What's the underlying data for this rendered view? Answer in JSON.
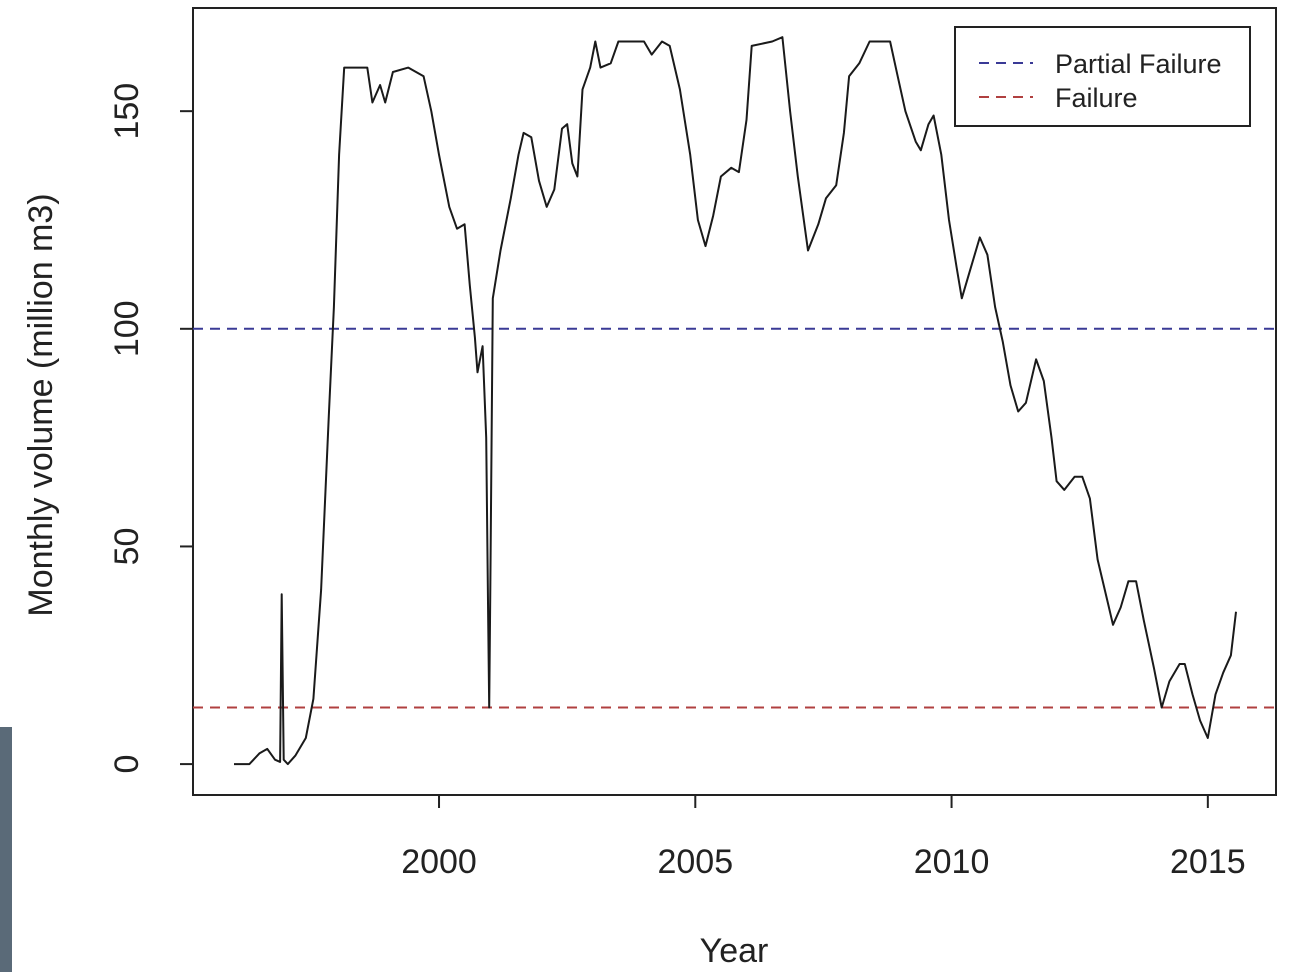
{
  "chart_data": {
    "type": "line",
    "xlabel": "Year",
    "ylabel": "Monthly volume (million m3)",
    "x": [
      1996.0,
      1996.3,
      1996.5,
      1996.65,
      1996.8,
      1996.9,
      1996.93,
      1996.97,
      1997.05,
      1997.2,
      1997.4,
      1997.55,
      1997.7,
      1997.85,
      1997.95,
      1998.05,
      1998.15,
      1998.6,
      1998.7,
      1998.85,
      1998.95,
      1999.1,
      1999.4,
      1999.7,
      1999.85,
      2000.0,
      2000.2,
      2000.35,
      2000.5,
      2000.6,
      2000.7,
      2000.75,
      2000.85,
      2000.92,
      2000.96,
      2000.98,
      2001.0,
      2001.05,
      2001.2,
      2001.4,
      2001.55,
      2001.65,
      2001.8,
      2001.95,
      2002.1,
      2002.25,
      2002.4,
      2002.5,
      2002.6,
      2002.7,
      2002.8,
      2002.95,
      2003.05,
      2003.15,
      2003.35,
      2003.5,
      2004.0,
      2004.15,
      2004.35,
      2004.5,
      2004.7,
      2004.9,
      2005.05,
      2005.2,
      2005.35,
      2005.5,
      2005.7,
      2005.85,
      2006.0,
      2006.1,
      2006.5,
      2006.7,
      2006.85,
      2007.0,
      2007.2,
      2007.4,
      2007.55,
      2007.75,
      2007.9,
      2008.0,
      2008.2,
      2008.4,
      2008.8,
      2008.95,
      2009.1,
      2009.3,
      2009.4,
      2009.55,
      2009.65,
      2009.8,
      2009.95,
      2010.1,
      2010.2,
      2010.35,
      2010.55,
      2010.7,
      2010.85,
      2011.0,
      2011.15,
      2011.3,
      2011.45,
      2011.65,
      2011.8,
      2011.95,
      2012.05,
      2012.2,
      2012.4,
      2012.55,
      2012.7,
      2012.85,
      2013.05,
      2013.15,
      2013.3,
      2013.45,
      2013.6,
      2013.75,
      2013.95,
      2014.1,
      2014.25,
      2014.45,
      2014.55,
      2014.7,
      2014.85,
      2015.0,
      2015.15,
      2015.3,
      2015.45,
      2015.55
    ],
    "values": [
      0,
      0,
      2.5,
      3.5,
      1,
      0.5,
      39,
      1,
      0,
      2,
      6,
      15,
      40,
      80,
      105,
      140,
      160,
      160,
      152,
      156,
      152,
      159,
      160,
      158,
      150,
      140,
      128,
      123,
      124,
      110,
      98,
      90,
      96,
      75,
      33,
      13,
      40,
      107,
      118,
      130,
      140,
      145,
      144,
      134,
      128,
      132,
      146,
      147,
      138,
      135,
      155,
      160,
      166,
      160,
      161,
      166,
      166,
      163,
      166,
      165,
      155,
      140,
      125,
      119,
      126,
      135,
      137,
      136,
      148,
      165,
      166,
      167,
      150,
      135,
      118,
      124,
      130,
      133,
      145,
      158,
      161,
      166,
      166,
      158,
      150,
      143,
      141,
      147,
      149,
      140,
      125,
      114,
      107,
      113,
      121,
      117,
      105,
      97,
      87,
      81,
      83,
      93,
      88,
      75,
      65,
      63,
      66,
      66,
      61,
      47,
      37,
      32,
      36,
      42,
      42,
      33,
      22,
      13,
      19,
      23,
      23,
      16,
      10,
      6,
      16,
      21,
      25,
      35
    ],
    "color": "#1a1a1a",
    "reference_lines": [
      {
        "name": "Partial Failure",
        "value": 100,
        "color": "#3a3a96"
      },
      {
        "name": "Failure",
        "value": 13,
        "color": "#b04040"
      }
    ],
    "xlim": [
      1995.2,
      2016.33
    ],
    "xticks": [
      2000,
      2005,
      2010,
      2015
    ],
    "ylim": [
      -7.1,
      173.7
    ],
    "yticks": [
      0,
      50,
      100,
      150
    ],
    "legend": "top-right"
  }
}
